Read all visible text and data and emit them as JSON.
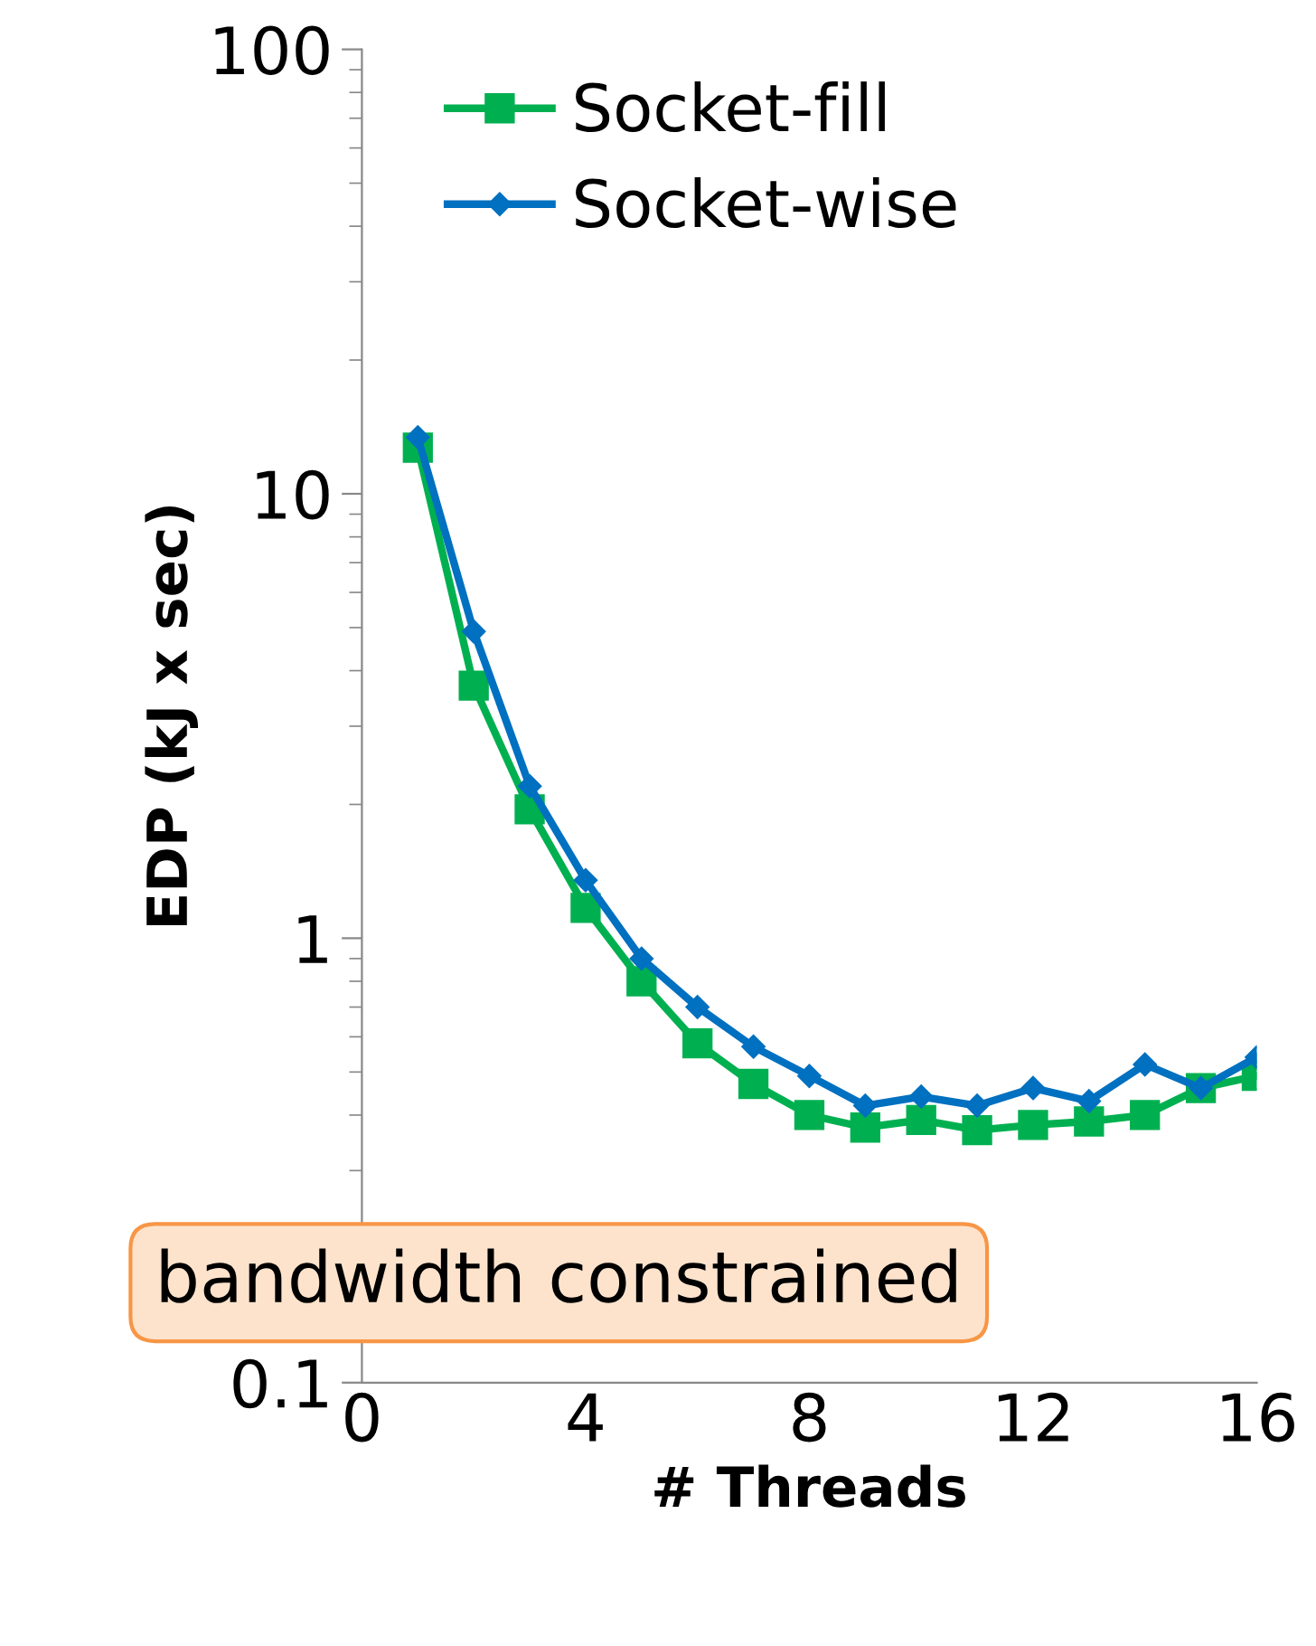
{
  "chart_data": {
    "type": "line",
    "xlabel": "# Threads",
    "ylabel": "EDP (kJ x sec)",
    "x": [
      1,
      2,
      3,
      4,
      5,
      6,
      7,
      8,
      9,
      10,
      11,
      12,
      13,
      14,
      15,
      16
    ],
    "series": [
      {
        "name": "Socket-fill",
        "color": "#00b050",
        "marker": "square",
        "values": [
          12.7,
          3.7,
          1.95,
          1.17,
          0.8,
          0.58,
          0.47,
          0.4,
          0.375,
          0.39,
          0.37,
          0.38,
          0.387,
          0.4,
          0.46,
          0.49
        ]
      },
      {
        "name": "Socket-wise",
        "color": "#0070c0",
        "marker": "diamond",
        "values": [
          13.4,
          4.9,
          2.2,
          1.35,
          0.9,
          0.7,
          0.57,
          0.49,
          0.42,
          0.44,
          0.42,
          0.46,
          0.43,
          0.52,
          0.46,
          0.54
        ]
      }
    ],
    "log": "y",
    "xlim": [
      0,
      16
    ],
    "xticks": [
      0,
      4,
      8,
      12,
      16
    ],
    "ylim": [
      0.1,
      100
    ],
    "yticks": [
      0.1,
      1,
      10,
      100
    ],
    "grid": false,
    "legend": "top left",
    "annotations": [
      "bandwidth constrained"
    ]
  }
}
